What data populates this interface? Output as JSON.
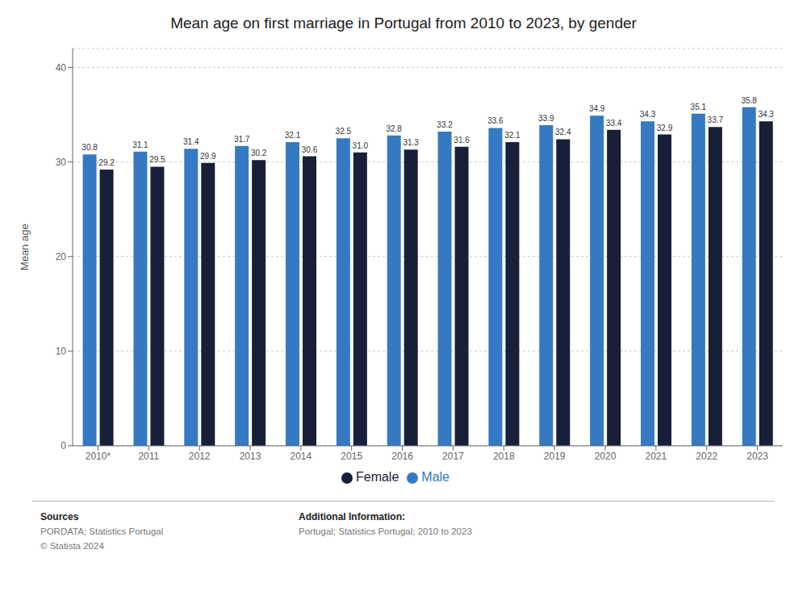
{
  "chart_data": {
    "type": "bar",
    "title": "Mean age on first marriage in Portugal from 2010 to 2023, by gender",
    "categories": [
      "2010*",
      "2011",
      "2012",
      "2013",
      "2014",
      "2015",
      "2016",
      "2017",
      "2018",
      "2019",
      "2020",
      "2021",
      "2022",
      "2023"
    ],
    "series": [
      {
        "name": "Male",
        "color": "#3579c3",
        "values": [
          30.8,
          31.1,
          31.4,
          31.7,
          32.1,
          32.5,
          32.8,
          33.2,
          33.6,
          33.9,
          34.9,
          34.3,
          35.1,
          35.8
        ],
        "value_labels": [
          "30.8",
          "31.1",
          "31.4",
          "31.7",
          "32.1",
          "32.5",
          "32.8",
          "33.2",
          "33.6",
          "33.9",
          "34.9",
          "34.3",
          "35.1",
          "35.8"
        ]
      },
      {
        "name": "Female",
        "color": "#172038",
        "values": [
          29.2,
          29.5,
          29.9,
          30.2,
          30.6,
          31.0,
          31.3,
          31.6,
          32.1,
          32.4,
          33.4,
          32.9,
          33.7,
          34.3
        ],
        "value_labels": [
          "29.2",
          "29.5",
          "29.9",
          "30.2",
          "30.6",
          "31.0",
          "31.3",
          "31.6",
          "32.1",
          "32.4",
          "33.4",
          "32.9",
          "33.7",
          "34.3"
        ]
      }
    ],
    "ylabel": "Mean age",
    "ylim": [
      0,
      42
    ],
    "yticks": [
      0,
      10,
      20,
      30,
      40
    ],
    "grid": true,
    "legend": "bottom",
    "data_labels": true,
    "annotations": [
      [
        "Sources",
        "PORDATA; Statistics Portugal",
        "© Statista 2024"
      ],
      [
        "Additional Information:",
        "Portugal; Statistics Portugal; 2010 to 2023"
      ]
    ]
  }
}
